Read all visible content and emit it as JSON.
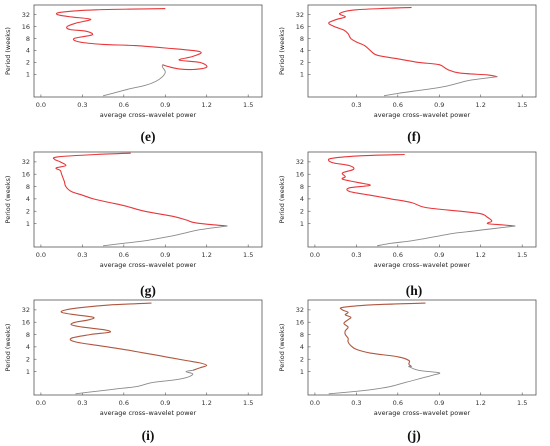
{
  "panel_labels": [
    "(e)",
    "(f)",
    "(g)",
    "(h)",
    "(i)",
    "(j)"
  ],
  "colors": {
    "significant": "#e8363a",
    "nonsignificant": "#8a8a8a",
    "brown": "#b0573f",
    "frame": "#555555"
  },
  "chart_data": [
    {
      "type": "line",
      "label": "(e)",
      "xlabel": "average cross–wavelet power",
      "ylabel": "Period (weeks)",
      "xlim": [
        -0.05,
        1.6
      ],
      "x_ticks": [
        "0.0",
        "0.3",
        "0.6",
        "0.9",
        "1.2",
        "1.5"
      ],
      "y_ticks": [
        "1",
        "2",
        "4",
        "8",
        "16",
        "32"
      ],
      "ylim_log2": [
        -1.9,
        5.8
      ],
      "series": [
        {
          "color": "#e8363a",
          "points": [
            [
              0.88,
              0.8
            ],
            [
              0.92,
              0.65
            ],
            [
              1.0,
              0.45
            ],
            [
              1.1,
              0.4
            ],
            [
              1.2,
              0.6
            ],
            [
              1.15,
              1.0
            ],
            [
              1.0,
              1.2
            ],
            [
              1.1,
              1.5
            ],
            [
              1.15,
              1.9
            ],
            [
              0.9,
              2.2
            ],
            [
              0.68,
              2.4
            ],
            [
              0.45,
              2.5
            ],
            [
              0.28,
              2.7
            ],
            [
              0.24,
              3.0
            ],
            [
              0.37,
              3.3
            ],
            [
              0.33,
              3.6
            ],
            [
              0.21,
              3.75
            ],
            [
              0.19,
              4.0
            ],
            [
              0.26,
              4.3
            ],
            [
              0.36,
              4.6
            ],
            [
              0.22,
              4.8
            ],
            [
              0.12,
              5.0
            ],
            [
              0.15,
              5.2
            ],
            [
              0.4,
              5.4
            ],
            [
              0.9,
              5.5
            ]
          ]
        },
        {
          "color": "#8a8a8a",
          "points": [
            [
              0.45,
              -1.8
            ],
            [
              0.55,
              -1.5
            ],
            [
              0.65,
              -1.2
            ],
            [
              0.75,
              -0.95
            ],
            [
              0.83,
              -0.6
            ],
            [
              0.88,
              -0.2
            ],
            [
              0.9,
              0.2
            ],
            [
              0.88,
              0.6
            ],
            [
              0.88,
              0.8
            ]
          ]
        }
      ]
    },
    {
      "type": "line",
      "label": "(f)",
      "xlabel": "average cross–wavelet power",
      "ylabel": "Period (weeks)",
      "xlim": [
        -0.05,
        1.6
      ],
      "x_ticks": [
        "0.3",
        "0.6",
        "0.9",
        "1.2",
        "1.5"
      ],
      "y_ticks": [
        "1",
        "2",
        "4",
        "8",
        "16",
        "32"
      ],
      "ylim_log2": [
        -1.9,
        5.8
      ],
      "series": [
        {
          "color": "#e8363a",
          "points": [
            [
              1.32,
              -0.2
            ],
            [
              1.25,
              -0.05
            ],
            [
              1.05,
              0.1
            ],
            [
              0.96,
              0.4
            ],
            [
              0.9,
              0.8
            ],
            [
              0.75,
              1.0
            ],
            [
              0.6,
              1.3
            ],
            [
              0.45,
              1.6
            ],
            [
              0.4,
              2.0
            ],
            [
              0.36,
              2.4
            ],
            [
              0.3,
              2.7
            ],
            [
              0.26,
              3.0
            ],
            [
              0.24,
              3.4
            ],
            [
              0.21,
              3.7
            ],
            [
              0.14,
              4.0
            ],
            [
              0.1,
              4.3
            ],
            [
              0.16,
              4.6
            ],
            [
              0.22,
              4.8
            ],
            [
              0.18,
              5.1
            ],
            [
              0.3,
              5.4
            ],
            [
              0.7,
              5.6
            ]
          ]
        },
        {
          "color": "#8a8a8a",
          "points": [
            [
              0.5,
              -1.8
            ],
            [
              0.6,
              -1.6
            ],
            [
              0.72,
              -1.4
            ],
            [
              0.85,
              -1.2
            ],
            [
              0.95,
              -1.0
            ],
            [
              1.05,
              -0.7
            ],
            [
              1.12,
              -0.5
            ],
            [
              1.32,
              -0.2
            ]
          ]
        }
      ]
    },
    {
      "type": "line",
      "label": "(g)",
      "xlabel": "average cross–wavelet power",
      "ylabel": "Period (weeks)",
      "xlim": [
        -0.05,
        1.6
      ],
      "x_ticks": [
        "0.0",
        "0.3",
        "0.6",
        "0.9",
        "1.2",
        "1.5"
      ],
      "y_ticks": [
        "1",
        "2",
        "4",
        "8",
        "16",
        "32"
      ],
      "ylim_log2": [
        -1.9,
        5.8
      ],
      "series": [
        {
          "color": "#e8363a",
          "points": [
            [
              1.35,
              -0.2
            ],
            [
              1.2,
              -0.05
            ],
            [
              1.1,
              0.1
            ],
            [
              1.05,
              0.3
            ],
            [
              0.95,
              0.6
            ],
            [
              0.75,
              1.0
            ],
            [
              0.62,
              1.4
            ],
            [
              0.5,
              1.7
            ],
            [
              0.38,
              2.0
            ],
            [
              0.3,
              2.3
            ],
            [
              0.22,
              2.6
            ],
            [
              0.18,
              3.0
            ],
            [
              0.17,
              3.4
            ],
            [
              0.16,
              3.7
            ],
            [
              0.15,
              4.0
            ],
            [
              0.14,
              4.3
            ],
            [
              0.11,
              4.5
            ],
            [
              0.18,
              4.7
            ],
            [
              0.14,
              5.0
            ],
            [
              0.1,
              5.2
            ],
            [
              0.12,
              5.4
            ],
            [
              0.4,
              5.6
            ],
            [
              0.65,
              5.7
            ]
          ]
        },
        {
          "color": "#8a8a8a",
          "points": [
            [
              0.45,
              -1.8
            ],
            [
              0.6,
              -1.6
            ],
            [
              0.75,
              -1.4
            ],
            [
              0.85,
              -1.2
            ],
            [
              0.95,
              -1.0
            ],
            [
              1.05,
              -0.75
            ],
            [
              1.15,
              -0.5
            ],
            [
              1.35,
              -0.2
            ]
          ]
        }
      ]
    },
    {
      "type": "line",
      "label": "(h)",
      "xlabel": "average cross–wavelet power",
      "ylabel": "Period (weeks)",
      "xlim": [
        -0.05,
        1.6
      ],
      "x_ticks": [
        "0.0",
        "0.3",
        "0.6",
        "0.9",
        "1.2",
        "1.5"
      ],
      "y_ticks": [
        "1",
        "2",
        "4",
        "8",
        "16",
        "32"
      ],
      "ylim_log2": [
        -1.9,
        5.8
      ],
      "series": [
        {
          "color": "#e8363a",
          "points": [
            [
              1.45,
              -0.2
            ],
            [
              1.35,
              -0.1
            ],
            [
              1.25,
              0.0
            ],
            [
              1.28,
              0.2
            ],
            [
              1.25,
              0.5
            ],
            [
              1.2,
              0.8
            ],
            [
              1.05,
              1.0
            ],
            [
              0.8,
              1.3
            ],
            [
              0.7,
              1.7
            ],
            [
              0.55,
              2.0
            ],
            [
              0.4,
              2.3
            ],
            [
              0.25,
              2.6
            ],
            [
              0.25,
              2.9
            ],
            [
              0.4,
              3.1
            ],
            [
              0.3,
              3.35
            ],
            [
              0.2,
              3.6
            ],
            [
              0.22,
              3.8
            ],
            [
              0.2,
              4.1
            ],
            [
              0.28,
              4.4
            ],
            [
              0.25,
              4.7
            ],
            [
              0.14,
              4.9
            ],
            [
              0.1,
              5.1
            ],
            [
              0.13,
              5.3
            ],
            [
              0.35,
              5.5
            ],
            [
              0.65,
              5.6
            ]
          ]
        },
        {
          "color": "#8a8a8a",
          "points": [
            [
              0.45,
              -1.8
            ],
            [
              0.55,
              -1.6
            ],
            [
              0.7,
              -1.4
            ],
            [
              0.8,
              -1.2
            ],
            [
              0.9,
              -1.0
            ],
            [
              1.0,
              -0.8
            ],
            [
              1.15,
              -0.6
            ],
            [
              1.3,
              -0.4
            ],
            [
              1.45,
              -0.2
            ]
          ]
        }
      ]
    },
    {
      "type": "line",
      "label": "(i)",
      "xlabel": "average cross–wavelet power",
      "ylabel": "Period (weeks)",
      "xlim": [
        -0.05,
        1.6
      ],
      "x_ticks": [
        "0.0",
        "0.3",
        "0.6",
        "0.9",
        "1.2",
        "1.5"
      ],
      "y_ticks": [
        "1",
        "2",
        "4",
        "8",
        "16",
        "32"
      ],
      "ylim_log2": [
        -1.9,
        5.8
      ],
      "series": [
        {
          "color": "#b0573f",
          "points": [
            [
              1.1,
              0.1
            ],
            [
              1.15,
              0.3
            ],
            [
              1.2,
              0.5
            ],
            [
              1.15,
              0.7
            ],
            [
              1.05,
              0.9
            ],
            [
              0.9,
              1.2
            ],
            [
              0.75,
              1.5
            ],
            [
              0.6,
              1.8
            ],
            [
              0.42,
              2.1
            ],
            [
              0.25,
              2.4
            ],
            [
              0.22,
              2.7
            ],
            [
              0.36,
              3.0
            ],
            [
              0.5,
              3.2
            ],
            [
              0.45,
              3.4
            ],
            [
              0.3,
              3.6
            ],
            [
              0.22,
              3.8
            ],
            [
              0.25,
              4.0
            ],
            [
              0.35,
              4.2
            ],
            [
              0.38,
              4.4
            ],
            [
              0.25,
              4.6
            ],
            [
              0.15,
              4.8
            ],
            [
              0.18,
              5.0
            ],
            [
              0.3,
              5.2
            ],
            [
              0.5,
              5.4
            ],
            [
              0.8,
              5.55
            ]
          ]
        },
        {
          "color": "#8a8a8a",
          "points": [
            [
              0.25,
              -1.8
            ],
            [
              0.4,
              -1.6
            ],
            [
              0.55,
              -1.4
            ],
            [
              0.7,
              -1.2
            ],
            [
              0.8,
              -0.9
            ],
            [
              0.95,
              -0.7
            ],
            [
              1.05,
              -0.5
            ],
            [
              1.1,
              -0.2
            ],
            [
              1.05,
              0.0
            ],
            [
              1.1,
              0.1
            ]
          ]
        }
      ]
    },
    {
      "type": "line",
      "label": "(j)",
      "xlabel": "average cross–wavelet power",
      "ylabel": "Period (weeks)",
      "xlim": [
        -0.05,
        1.6
      ],
      "x_ticks": [
        "0.0",
        "0.3",
        "0.6",
        "0.9",
        "1.2",
        "1.5"
      ],
      "y_ticks": [
        "1",
        "2",
        "4",
        "8",
        "16",
        "32"
      ],
      "ylim_log2": [
        -1.9,
        5.8
      ],
      "series": [
        {
          "color": "#b0573f",
          "points": [
            [
              0.7,
              0.4
            ],
            [
              0.68,
              0.6
            ],
            [
              0.68,
              0.9
            ],
            [
              0.6,
              1.2
            ],
            [
              0.4,
              1.5
            ],
            [
              0.3,
              1.8
            ],
            [
              0.26,
              2.1
            ],
            [
              0.24,
              2.4
            ],
            [
              0.24,
              2.7
            ],
            [
              0.22,
              3.0
            ],
            [
              0.22,
              3.3
            ],
            [
              0.24,
              3.6
            ],
            [
              0.21,
              3.9
            ],
            [
              0.24,
              4.2
            ],
            [
              0.26,
              4.4
            ],
            [
              0.22,
              4.6
            ],
            [
              0.24,
              4.8
            ],
            [
              0.2,
              5.0
            ],
            [
              0.2,
              5.2
            ],
            [
              0.4,
              5.4
            ],
            [
              0.8,
              5.55
            ]
          ]
        },
        {
          "color": "#8a8a8a",
          "points": [
            [
              0.1,
              -1.8
            ],
            [
              0.3,
              -1.6
            ],
            [
              0.45,
              -1.4
            ],
            [
              0.55,
              -1.2
            ],
            [
              0.65,
              -0.9
            ],
            [
              0.75,
              -0.6
            ],
            [
              0.85,
              -0.3
            ],
            [
              0.9,
              -0.1
            ],
            [
              0.75,
              0.1
            ],
            [
              0.68,
              0.4
            ],
            [
              0.7,
              0.4
            ]
          ]
        }
      ]
    }
  ]
}
